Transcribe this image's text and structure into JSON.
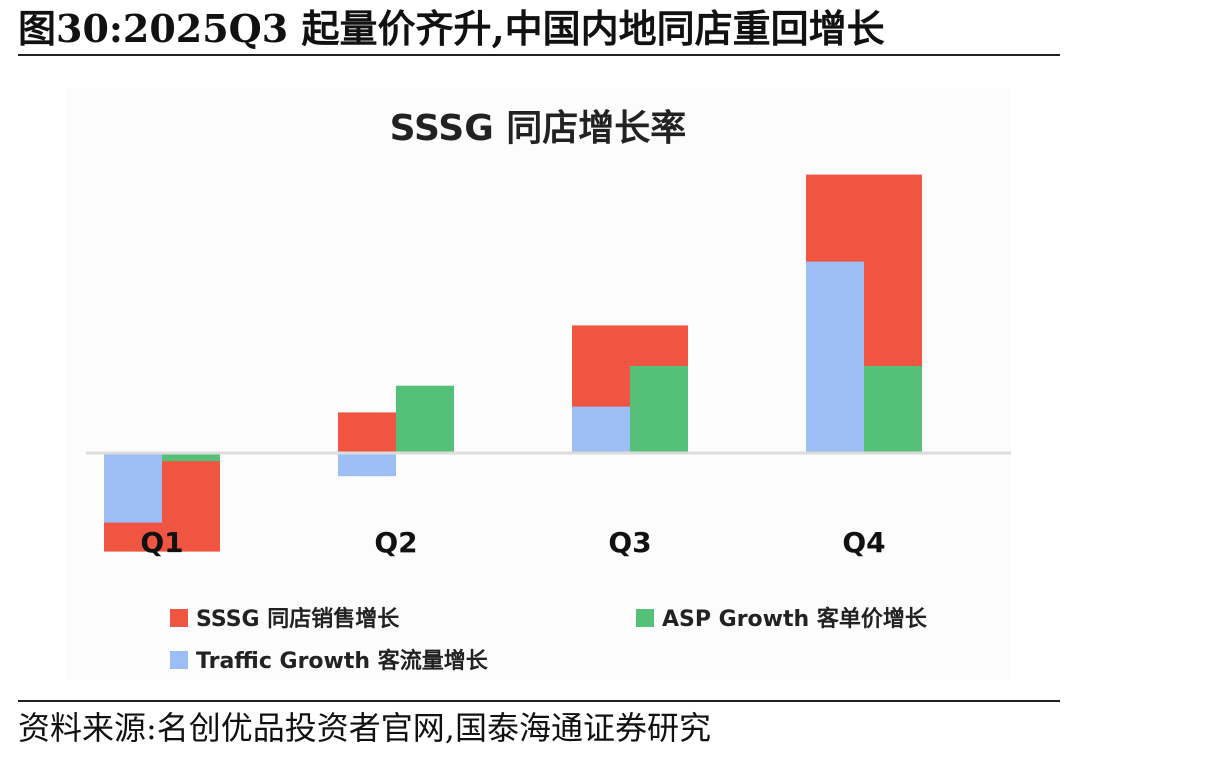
{
  "figure": {
    "title": "图30:2025Q3 起量价齐升,中国内地同店重回增长",
    "source": "资料来源:名创优品投资者官网,国泰海通证券研究"
  },
  "chart_data": {
    "type": "bar",
    "title": "SSSG 同店增长率",
    "categories": [
      "Q1",
      "Q2",
      "Q3",
      "Q4"
    ],
    "series": [
      {
        "name": "SSSG 同店销售增长",
        "color": "#f05542",
        "values": [
          -8.5,
          3.5,
          11,
          24
        ]
      },
      {
        "name": "Traffic Growth 客流量增长",
        "color": "#9dbef4",
        "values": [
          -6,
          -2,
          4,
          16.5
        ]
      },
      {
        "name": "ASP Growth 客单价增长",
        "color": "#54c078",
        "values": [
          -0.7,
          5.8,
          7.5,
          7.5
        ]
      }
    ],
    "legend_position": "bottom",
    "grid": false,
    "ylim": [
      -9,
      24
    ]
  }
}
